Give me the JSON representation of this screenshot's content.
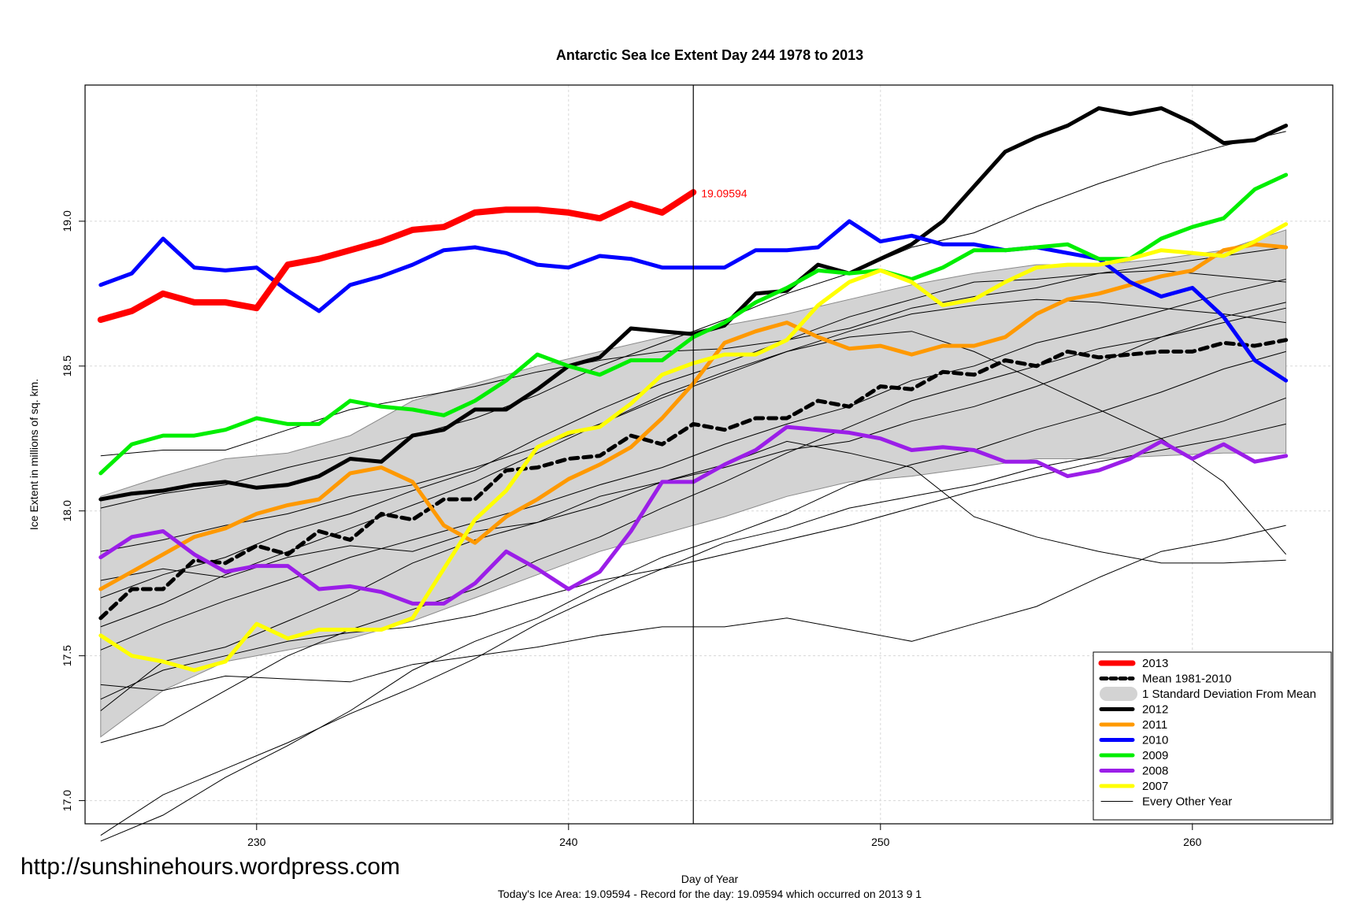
{
  "chart_data": {
    "type": "line",
    "title": "Antarctic Sea Ice Extent Day 244 1978 to 2013",
    "xlabel": "Day of Year",
    "ylabel": "Ice Extent in millions of sq. km.",
    "subtitle": "Today's Ice Area: 19.09594  - Record for the day: 19.09594 which occurred on 2013 9 1",
    "xlim": [
      224.5,
      264.5
    ],
    "ylim": [
      16.92,
      19.47
    ],
    "x_ticks": [
      "230",
      "240",
      "250",
      "260"
    ],
    "y_ticks": [
      "17.0",
      "17.5",
      "18.0",
      "18.5",
      "19.0"
    ],
    "grid": true,
    "current_day_marker": 244,
    "current_value_label": "19.09594",
    "current_value": 19.09594,
    "std_band": {
      "days": [
        225,
        227,
        229,
        231,
        233,
        235,
        237,
        239,
        241,
        243,
        245,
        247,
        249,
        251,
        253,
        255,
        257,
        259,
        261,
        263
      ],
      "upper": [
        18.05,
        18.12,
        18.18,
        18.2,
        18.26,
        18.38,
        18.44,
        18.5,
        18.55,
        18.6,
        18.64,
        18.68,
        18.73,
        18.78,
        18.82,
        18.85,
        18.85,
        18.87,
        18.9,
        18.97
      ],
      "lower": [
        17.22,
        17.38,
        17.48,
        17.52,
        17.56,
        17.62,
        17.7,
        17.78,
        17.86,
        17.92,
        17.98,
        18.05,
        18.1,
        18.12,
        18.15,
        18.18,
        18.18,
        18.19,
        18.2,
        18.2
      ]
    },
    "series": [
      {
        "name": "2013",
        "color": "#ff0000",
        "width": 8,
        "x": [
          225,
          226,
          227,
          228,
          229,
          230,
          231,
          232,
          233,
          234,
          235,
          236,
          237,
          238,
          239,
          240,
          241,
          242,
          243,
          244
        ],
        "values": [
          18.66,
          18.69,
          18.75,
          18.72,
          18.72,
          18.7,
          18.85,
          18.87,
          18.9,
          18.93,
          18.97,
          18.98,
          19.03,
          19.04,
          19.04,
          19.03,
          19.01,
          19.06,
          19.03,
          19.1
        ]
      },
      {
        "name": "Mean 1981-2010",
        "color": "#000000",
        "width": 5,
        "dash": "10,7",
        "x": [
          225,
          226,
          227,
          228,
          229,
          230,
          231,
          232,
          233,
          234,
          235,
          236,
          237,
          238,
          239,
          240,
          241,
          242,
          243,
          244,
          245,
          246,
          247,
          248,
          249,
          250,
          251,
          252,
          253,
          254,
          255,
          256,
          257,
          258,
          259,
          260,
          261,
          262,
          263
        ],
        "values": [
          17.63,
          17.73,
          17.73,
          17.83,
          17.82,
          17.88,
          17.85,
          17.93,
          17.9,
          17.99,
          17.97,
          18.04,
          18.04,
          18.14,
          18.15,
          18.18,
          18.19,
          18.26,
          18.23,
          18.3,
          18.28,
          18.32,
          18.32,
          18.38,
          18.36,
          18.43,
          18.42,
          18.48,
          18.47,
          18.52,
          18.5,
          18.55,
          18.53,
          18.54,
          18.55,
          18.55,
          18.58,
          18.57,
          18.59
        ]
      },
      {
        "name": "2012",
        "color": "#000000",
        "width": 5,
        "x": [
          225,
          226,
          227,
          228,
          229,
          230,
          231,
          232,
          233,
          234,
          235,
          236,
          237,
          238,
          239,
          240,
          241,
          242,
          243,
          244,
          245,
          246,
          247,
          248,
          249,
          250,
          251,
          252,
          253,
          254,
          255,
          256,
          257,
          258,
          259,
          260,
          261,
          262,
          263
        ],
        "values": [
          18.04,
          18.06,
          18.07,
          18.09,
          18.1,
          18.08,
          18.09,
          18.12,
          18.18,
          18.17,
          18.26,
          18.28,
          18.35,
          18.35,
          18.42,
          18.5,
          18.53,
          18.63,
          18.62,
          18.61,
          18.64,
          18.75,
          18.76,
          18.85,
          18.82,
          18.87,
          18.92,
          19.0,
          19.12,
          19.24,
          19.29,
          19.33,
          19.39,
          19.37,
          19.39,
          19.34,
          19.27,
          19.28,
          19.33
        ]
      },
      {
        "name": "2011",
        "color": "#ff9900",
        "width": 5,
        "x": [
          225,
          226,
          227,
          228,
          229,
          230,
          231,
          232,
          233,
          234,
          235,
          236,
          237,
          238,
          239,
          240,
          241,
          242,
          243,
          244,
          245,
          246,
          247,
          248,
          249,
          250,
          251,
          252,
          253,
          254,
          255,
          256,
          257,
          258,
          259,
          260,
          261,
          262,
          263
        ],
        "values": [
          17.73,
          17.79,
          17.85,
          17.91,
          17.94,
          17.99,
          18.02,
          18.04,
          18.13,
          18.15,
          18.1,
          17.95,
          17.89,
          17.98,
          18.04,
          18.11,
          18.16,
          18.22,
          18.32,
          18.44,
          18.58,
          18.62,
          18.65,
          18.6,
          18.56,
          18.57,
          18.54,
          18.57,
          18.57,
          18.6,
          18.68,
          18.73,
          18.75,
          18.78,
          18.81,
          18.83,
          18.9,
          18.92,
          18.91
        ]
      },
      {
        "name": "2010",
        "color": "#0000ff",
        "width": 5,
        "x": [
          225,
          226,
          227,
          228,
          229,
          230,
          231,
          232,
          233,
          234,
          235,
          236,
          237,
          238,
          239,
          240,
          241,
          242,
          243,
          244,
          245,
          246,
          247,
          248,
          249,
          250,
          251,
          252,
          253,
          254,
          255,
          256,
          257,
          258,
          259,
          260,
          261,
          262,
          263
        ],
        "values": [
          18.78,
          18.82,
          18.94,
          18.84,
          18.83,
          18.84,
          18.76,
          18.69,
          18.78,
          18.81,
          18.85,
          18.9,
          18.91,
          18.89,
          18.85,
          18.84,
          18.88,
          18.87,
          18.84,
          18.84,
          18.84,
          18.9,
          18.9,
          18.91,
          19.0,
          18.93,
          18.95,
          18.92,
          18.92,
          18.9,
          18.91,
          18.89,
          18.87,
          18.79,
          18.74,
          18.77,
          18.67,
          18.52,
          18.45
        ]
      },
      {
        "name": "2009",
        "color": "#00ee00",
        "width": 5,
        "x": [
          225,
          226,
          227,
          228,
          229,
          230,
          231,
          232,
          233,
          234,
          235,
          236,
          237,
          238,
          239,
          240,
          241,
          242,
          243,
          244,
          245,
          246,
          247,
          248,
          249,
          250,
          251,
          252,
          253,
          254,
          255,
          256,
          257,
          258,
          259,
          260,
          261,
          262,
          263
        ],
        "values": [
          18.13,
          18.23,
          18.26,
          18.26,
          18.28,
          18.32,
          18.3,
          18.3,
          18.38,
          18.36,
          18.35,
          18.33,
          18.38,
          18.45,
          18.54,
          18.5,
          18.47,
          18.52,
          18.52,
          18.6,
          18.65,
          18.72,
          18.77,
          18.83,
          18.82,
          18.83,
          18.8,
          18.84,
          18.9,
          18.9,
          18.91,
          18.92,
          18.87,
          18.87,
          18.94,
          18.98,
          19.01,
          19.11,
          19.16
        ]
      },
      {
        "name": "2008",
        "color": "#9b1ee8",
        "width": 5,
        "x": [
          225,
          226,
          227,
          228,
          229,
          230,
          231,
          232,
          233,
          234,
          235,
          236,
          237,
          238,
          239,
          240,
          241,
          242,
          243,
          244,
          245,
          246,
          247,
          248,
          249,
          250,
          251,
          252,
          253,
          254,
          255,
          256,
          257,
          258,
          259,
          260,
          261,
          262,
          263
        ],
        "values": [
          17.84,
          17.91,
          17.93,
          17.85,
          17.79,
          17.81,
          17.81,
          17.73,
          17.74,
          17.72,
          17.68,
          17.68,
          17.75,
          17.86,
          17.8,
          17.73,
          17.79,
          17.93,
          18.1,
          18.1,
          18.16,
          18.21,
          18.29,
          18.28,
          18.27,
          18.25,
          18.21,
          18.22,
          18.21,
          18.17,
          18.17,
          18.12,
          18.14,
          18.18,
          18.24,
          18.18,
          18.23,
          18.17,
          18.19
        ]
      },
      {
        "name": "2007",
        "color": "#ffff00",
        "width": 5,
        "x": [
          225,
          226,
          227,
          228,
          229,
          230,
          231,
          232,
          233,
          234,
          235,
          236,
          237,
          238,
          239,
          240,
          241,
          242,
          243,
          244,
          245,
          246,
          247,
          248,
          249,
          250,
          251,
          252,
          253,
          254,
          255,
          256,
          257,
          258,
          259,
          260,
          261,
          262,
          263
        ],
        "values": [
          17.57,
          17.5,
          17.48,
          17.45,
          17.48,
          17.61,
          17.56,
          17.59,
          17.59,
          17.59,
          17.63,
          17.8,
          17.97,
          18.07,
          18.22,
          18.27,
          18.29,
          18.37,
          18.47,
          18.51,
          18.54,
          18.54,
          18.59,
          18.71,
          18.79,
          18.83,
          18.79,
          18.71,
          18.73,
          18.79,
          18.84,
          18.85,
          18.85,
          18.87,
          18.9,
          18.89,
          18.88,
          18.93,
          18.99
        ]
      }
    ],
    "other_years": [
      [
        18.19,
        18.21,
        18.21,
        18.28,
        18.35,
        18.39,
        18.43,
        18.48,
        18.52,
        18.55,
        18.56,
        18.59,
        18.63,
        18.7,
        18.74,
        18.77,
        18.82,
        18.85,
        18.88,
        18.91
      ],
      [
        17.31,
        17.48,
        17.53,
        17.62,
        17.71,
        17.82,
        17.9,
        17.96,
        18.02,
        18.1,
        18.15,
        18.21,
        18.24,
        18.31,
        18.36,
        18.43,
        18.51,
        18.6,
        18.67,
        18.72
      ],
      [
        16.88,
        17.02,
        17.11,
        17.2,
        17.3,
        17.39,
        17.49,
        17.61,
        17.71,
        17.8,
        17.89,
        17.94,
        18.01,
        18.05,
        18.09,
        18.15,
        18.19,
        18.25,
        18.31,
        18.39
      ],
      [
        16.86,
        16.95,
        17.08,
        17.19,
        17.31,
        17.45,
        17.55,
        17.63,
        17.74,
        17.84,
        17.91,
        17.99,
        18.09,
        18.16,
        18.21,
        18.28,
        18.34,
        18.41,
        18.49,
        18.55
      ],
      [
        17.2,
        17.26,
        17.38,
        17.5,
        17.59,
        17.66,
        17.73,
        17.83,
        17.91,
        18.01,
        18.1,
        18.2,
        18.29,
        18.38,
        18.44,
        18.5,
        18.56,
        18.6,
        18.65,
        18.7
      ],
      [
        17.52,
        17.61,
        17.69,
        17.76,
        17.84,
        17.9,
        17.96,
        18.02,
        18.09,
        18.15,
        18.23,
        18.3,
        18.36,
        18.45,
        18.5,
        18.58,
        18.63,
        18.69,
        18.75,
        18.8
      ],
      [
        18.01,
        18.06,
        18.09,
        18.15,
        18.2,
        18.26,
        18.32,
        18.4,
        18.5,
        18.58,
        18.66,
        18.75,
        18.82,
        18.91,
        18.96,
        19.05,
        19.13,
        19.2,
        19.26,
        19.31
      ],
      [
        17.4,
        17.38,
        17.43,
        17.42,
        17.41,
        17.47,
        17.5,
        17.53,
        17.57,
        17.6,
        17.6,
        17.63,
        17.59,
        17.55,
        17.61,
        17.67,
        17.77,
        17.86,
        17.9,
        17.95
      ],
      [
        17.76,
        17.8,
        17.77,
        17.84,
        17.88,
        17.86,
        17.93,
        17.96,
        18.05,
        18.1,
        18.16,
        18.24,
        18.2,
        18.15,
        17.98,
        17.91,
        17.86,
        17.82,
        17.82,
        17.83
      ],
      [
        17.6,
        17.68,
        17.78,
        17.86,
        17.94,
        18.02,
        18.1,
        18.2,
        18.3,
        18.4,
        18.48,
        18.55,
        18.62,
        18.68,
        18.71,
        18.73,
        18.72,
        18.7,
        18.68,
        18.65
      ],
      [
        17.86,
        17.9,
        17.95,
        17.99,
        18.05,
        18.09,
        18.15,
        18.22,
        18.3,
        18.39,
        18.47,
        18.55,
        18.6,
        18.62,
        18.55,
        18.45,
        18.35,
        18.25,
        18.1,
        17.85
      ],
      [
        17.7,
        17.78,
        17.84,
        17.93,
        17.99,
        18.07,
        18.14,
        18.25,
        18.35,
        18.44,
        18.51,
        18.59,
        18.67,
        18.73,
        18.79,
        18.8,
        18.82,
        18.83,
        18.81,
        18.79
      ],
      [
        17.35,
        17.45,
        17.5,
        17.55,
        17.58,
        17.6,
        17.64,
        17.7,
        17.76,
        17.8,
        17.85,
        17.9,
        17.95,
        18.01,
        18.07,
        18.12,
        18.17,
        18.21,
        18.25,
        18.3
      ]
    ],
    "legend": {
      "position": "bottom-right",
      "entries": [
        {
          "label": "2013",
          "color": "#ff0000",
          "style": "thick"
        },
        {
          "label": "Mean 1981-2010",
          "color": "#000000",
          "style": "dashed"
        },
        {
          "label": "1 Standard Deviation From Mean",
          "color": "#d3d3d3",
          "style": "band"
        },
        {
          "label": "2012",
          "color": "#000000",
          "style": "solid"
        },
        {
          "label": "2011",
          "color": "#ff9900",
          "style": "solid"
        },
        {
          "label": "2010",
          "color": "#0000ff",
          "style": "solid"
        },
        {
          "label": "2009",
          "color": "#00ee00",
          "style": "solid"
        },
        {
          "label": "2008",
          "color": "#9b1ee8",
          "style": "solid"
        },
        {
          "label": "2007",
          "color": "#ffff00",
          "style": "solid"
        },
        {
          "label": "Every Other Year",
          "color": "#000000",
          "style": "thin"
        }
      ]
    }
  },
  "watermark": "http://sunshinehours.wordpress.com"
}
